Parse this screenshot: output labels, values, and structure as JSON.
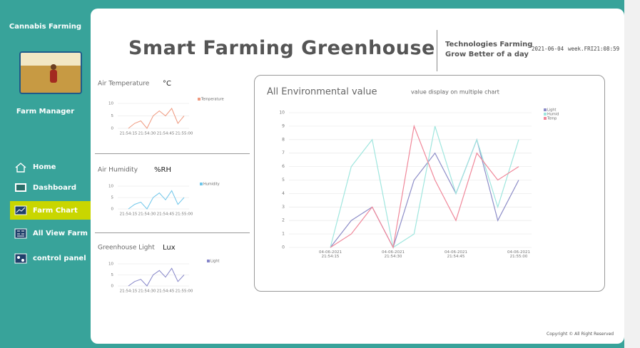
{
  "sidebar": {
    "brand": "Cannabis Farming",
    "role": "Farm Manager",
    "nav": [
      "Home",
      "Dashboard",
      "Farm Chart",
      "All View Farm",
      "control panel"
    ],
    "active": 2
  },
  "header": {
    "title": "Smart Farming Greenhouse",
    "tagline": [
      "Technologies Farming",
      "Grow Better of a day"
    ],
    "date": "2021-06-04",
    "week": "week.FRI",
    "time": "21:08:59"
  },
  "chart_data": [
    {
      "type": "line",
      "title": "Air Temperature",
      "unit": "°C",
      "categories": [
        "21:54:15",
        null,
        null,
        "21:54:30",
        null,
        null,
        "21:54:45",
        null,
        null,
        "21:55:00"
      ],
      "series": [
        {
          "name": "Temperature",
          "color": "#ef9a80",
          "values": [
            0,
            2,
            3,
            0,
            5,
            7,
            5,
            8,
            2,
            5
          ]
        }
      ],
      "ylim": [
        0,
        10
      ],
      "yticks": [
        0,
        5,
        10
      ],
      "grid": true
    },
    {
      "type": "line",
      "title": "Air Humidity",
      "unit": "%RH",
      "categories": [
        "21:54:15",
        null,
        null,
        "21:54:30",
        null,
        null,
        "21:54:45",
        null,
        null,
        "21:55:00"
      ],
      "series": [
        {
          "name": "Humidity",
          "color": "#6fc6ea",
          "values": [
            0,
            2,
            3,
            0,
            5,
            7,
            4,
            8,
            2,
            5
          ]
        }
      ],
      "ylim": [
        0,
        10
      ],
      "yticks": [
        0,
        5,
        10
      ],
      "grid": true
    },
    {
      "type": "line",
      "title": "Greenhouse Light",
      "unit": "Lux",
      "categories": [
        "21:54:15",
        null,
        null,
        "21:54:30",
        null,
        null,
        "21:54:45",
        null,
        null,
        "21:55:00"
      ],
      "series": [
        {
          "name": "Light",
          "color": "#8585c8",
          "values": [
            0,
            2,
            3,
            0,
            5,
            7,
            4,
            8,
            2,
            5
          ]
        }
      ],
      "ylim": [
        0,
        10
      ],
      "yticks": [
        0,
        5,
        10
      ],
      "grid": true
    },
    {
      "type": "line",
      "title": "All Environmental value",
      "subtitle": "value display on multiple chart",
      "categories": [
        "04-06-2021 21:54:15",
        null,
        null,
        "04-06-2021 21:54:30",
        null,
        null,
        "04-06-2021 21:54:45",
        null,
        null,
        "04-06-2021 21:55:00"
      ],
      "series": [
        {
          "name": "Light",
          "color": "#8e8ec8",
          "values": [
            0,
            2,
            3,
            0,
            5,
            7,
            4,
            8,
            2,
            5
          ]
        },
        {
          "name": "Humid",
          "color": "#9fe6de",
          "values": [
            0,
            6,
            8,
            0,
            1,
            9,
            4,
            8,
            3,
            8
          ]
        },
        {
          "name": "Temp",
          "color": "#f0889a",
          "values": [
            0,
            1,
            3,
            0,
            9,
            5,
            2,
            7,
            5,
            6
          ]
        }
      ],
      "ylim": [
        0,
        10
      ],
      "yticks": [
        0,
        1,
        2,
        3,
        4,
        5,
        6,
        7,
        8,
        9,
        10
      ],
      "grid": true
    }
  ],
  "footer": "Copyright © All Right Reserved"
}
